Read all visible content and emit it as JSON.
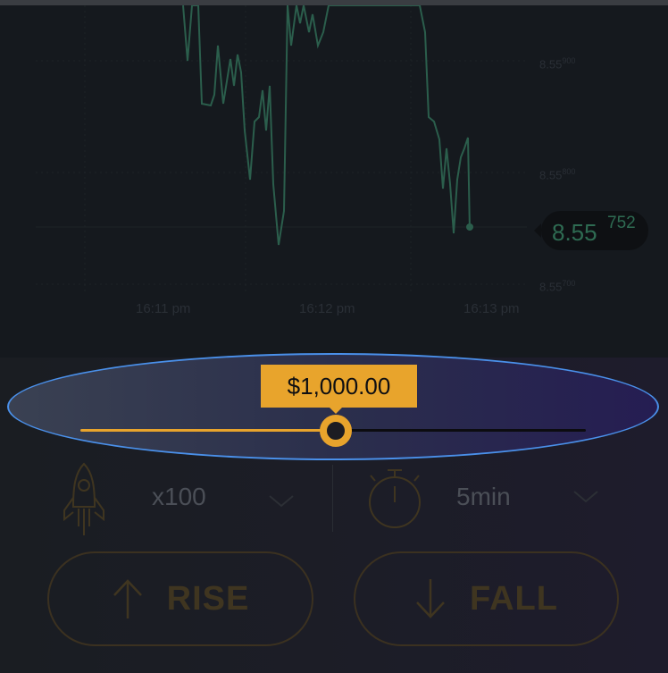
{
  "chart": {
    "price_labels": [
      {
        "base": "8.55",
        "sup": "900"
      },
      {
        "base": "8.55",
        "sup": "800"
      },
      {
        "base": "8.55",
        "sup": "700"
      }
    ],
    "current_price": {
      "base": "8.55",
      "sup": "752"
    },
    "time_labels": [
      "16:11 pm",
      "16:12 pm",
      "16:13 pm"
    ],
    "line_color": "#2b5e4c"
  },
  "amount": {
    "value_text": "$1,000.00",
    "slider_fraction": 0.5
  },
  "options": {
    "multiplier": "x100",
    "duration": "5min"
  },
  "buttons": {
    "rise_label": "RISE",
    "fall_label": "FALL"
  },
  "colors": {
    "accent": "#e8a42c",
    "highlight_outline": "#4a90ea"
  }
}
